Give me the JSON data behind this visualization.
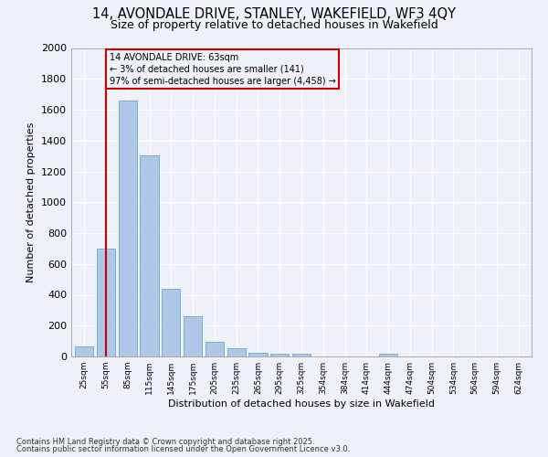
{
  "title_line1": "14, AVONDALE DRIVE, STANLEY, WAKEFIELD, WF3 4QY",
  "title_line2": "Size of property relative to detached houses in Wakefield",
  "xlabel": "Distribution of detached houses by size in Wakefield",
  "ylabel": "Number of detached properties",
  "categories": [
    "25sqm",
    "55sqm",
    "85sqm",
    "115sqm",
    "145sqm",
    "175sqm",
    "205sqm",
    "235sqm",
    "265sqm",
    "295sqm",
    "325sqm",
    "354sqm",
    "384sqm",
    "414sqm",
    "444sqm",
    "474sqm",
    "504sqm",
    "534sqm",
    "564sqm",
    "594sqm",
    "624sqm"
  ],
  "values": [
    65,
    700,
    1660,
    1305,
    440,
    258,
    95,
    53,
    25,
    20,
    20,
    0,
    0,
    0,
    15,
    0,
    0,
    0,
    0,
    0,
    0
  ],
  "bar_color": "#aec6e8",
  "bar_edge_color": "#6aaad4",
  "vline_x_idx": 1,
  "vline_color": "#cc0000",
  "annotation_text": "14 AVONDALE DRIVE: 63sqm\n← 3% of detached houses are smaller (141)\n97% of semi-detached houses are larger (4,458) →",
  "annotation_box_color": "#cc0000",
  "annotation_text_color": "#000000",
  "ylim": [
    0,
    2000
  ],
  "yticks": [
    0,
    200,
    400,
    600,
    800,
    1000,
    1200,
    1400,
    1600,
    1800,
    2000
  ],
  "background_color": "#eef2f8",
  "grid_color": "#ffffff",
  "footer_line1": "Contains HM Land Registry data © Crown copyright and database right 2025.",
  "footer_line2": "Contains public sector information licensed under the Open Government Licence v3.0."
}
